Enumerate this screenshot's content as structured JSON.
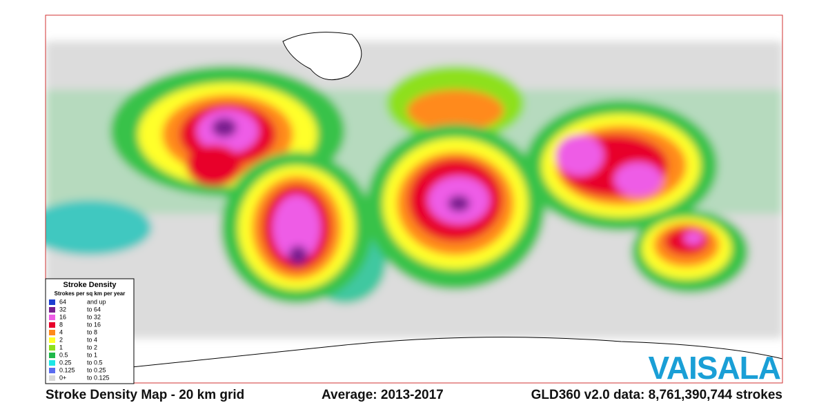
{
  "map": {
    "legend": {
      "title": "Stroke Density",
      "subtitle": "Strokes per sq km per year",
      "items": [
        {
          "from": "64",
          "range": "and up",
          "color": "#1c3fd0"
        },
        {
          "from": "32",
          "range": "to 64",
          "color": "#7a1f8f"
        },
        {
          "from": "16",
          "range": "to 32",
          "color": "#ee5ce6"
        },
        {
          "from": "8",
          "range": "to 16",
          "color": "#e8002a"
        },
        {
          "from": "4",
          "range": "to  8",
          "color": "#ff8a1c"
        },
        {
          "from": "2",
          "range": "to  4",
          "color": "#ffff2a"
        },
        {
          "from": "1",
          "range": "to  2",
          "color": "#8ee01c"
        },
        {
          "from": "0.5",
          "range": "to  1",
          "color": "#1fb84a"
        },
        {
          "from": "0.25",
          "range": "to 0.5",
          "color": "#1ee6e6"
        },
        {
          "from": "0.125",
          "range": "to 0.25",
          "color": "#5a6cf0"
        },
        {
          "from": "0+",
          "range": "to  0.125",
          "color": "#d9d9d9"
        }
      ]
    },
    "footer": {
      "left": "Stroke Density Map - 20 km grid",
      "middle": "Average: 2013-2017",
      "right": "GLD360 v2.0 data: 8,761,390,744 strokes"
    },
    "logo": "VAISALA"
  }
}
